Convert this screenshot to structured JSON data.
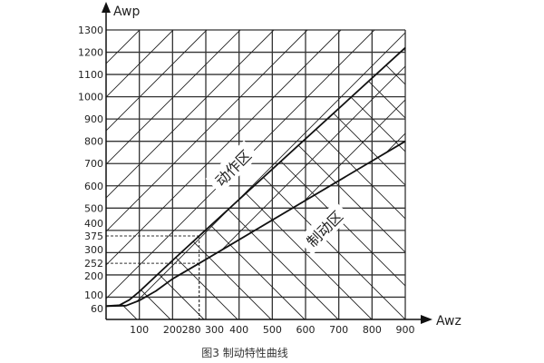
{
  "chart_data": {
    "type": "line",
    "title": "图3  制动特性曲线",
    "xlabel": "Awz",
    "ylabel": "Awp",
    "xlim": [
      0,
      900
    ],
    "ylim": [
      0,
      1300
    ],
    "grid": true,
    "x_ticks": [
      100,
      200,
      280,
      300,
      400,
      500,
      600,
      700,
      800,
      900
    ],
    "y_ticks": [
      60,
      100,
      200,
      252,
      300,
      375,
      400,
      500,
      600,
      700,
      800,
      900,
      1000,
      1100,
      1200,
      1300
    ],
    "series": [
      {
        "points": [
          [
            0,
            60
          ],
          [
            40,
            64
          ],
          [
            70,
            88
          ],
          [
            100,
            125
          ],
          [
            150,
            195
          ],
          [
            200,
            265
          ],
          [
            280,
            375
          ],
          [
            900,
            1220
          ]
        ]
      },
      {
        "points": [
          [
            0,
            60
          ],
          [
            60,
            62
          ],
          [
            100,
            85
          ],
          [
            150,
            128
          ],
          [
            200,
            182
          ],
          [
            280,
            252
          ],
          [
            900,
            800
          ]
        ]
      }
    ],
    "reference_lines": [
      {
        "x": 280,
        "y": 375,
        "style": "dashed"
      },
      {
        "x": 280,
        "y": 252,
        "style": "dashed"
      }
    ],
    "annotations": [
      {
        "text": "动作区",
        "x": 420,
        "y": 640
      },
      {
        "text": "制动区",
        "x": 700,
        "y": 420
      }
    ]
  }
}
